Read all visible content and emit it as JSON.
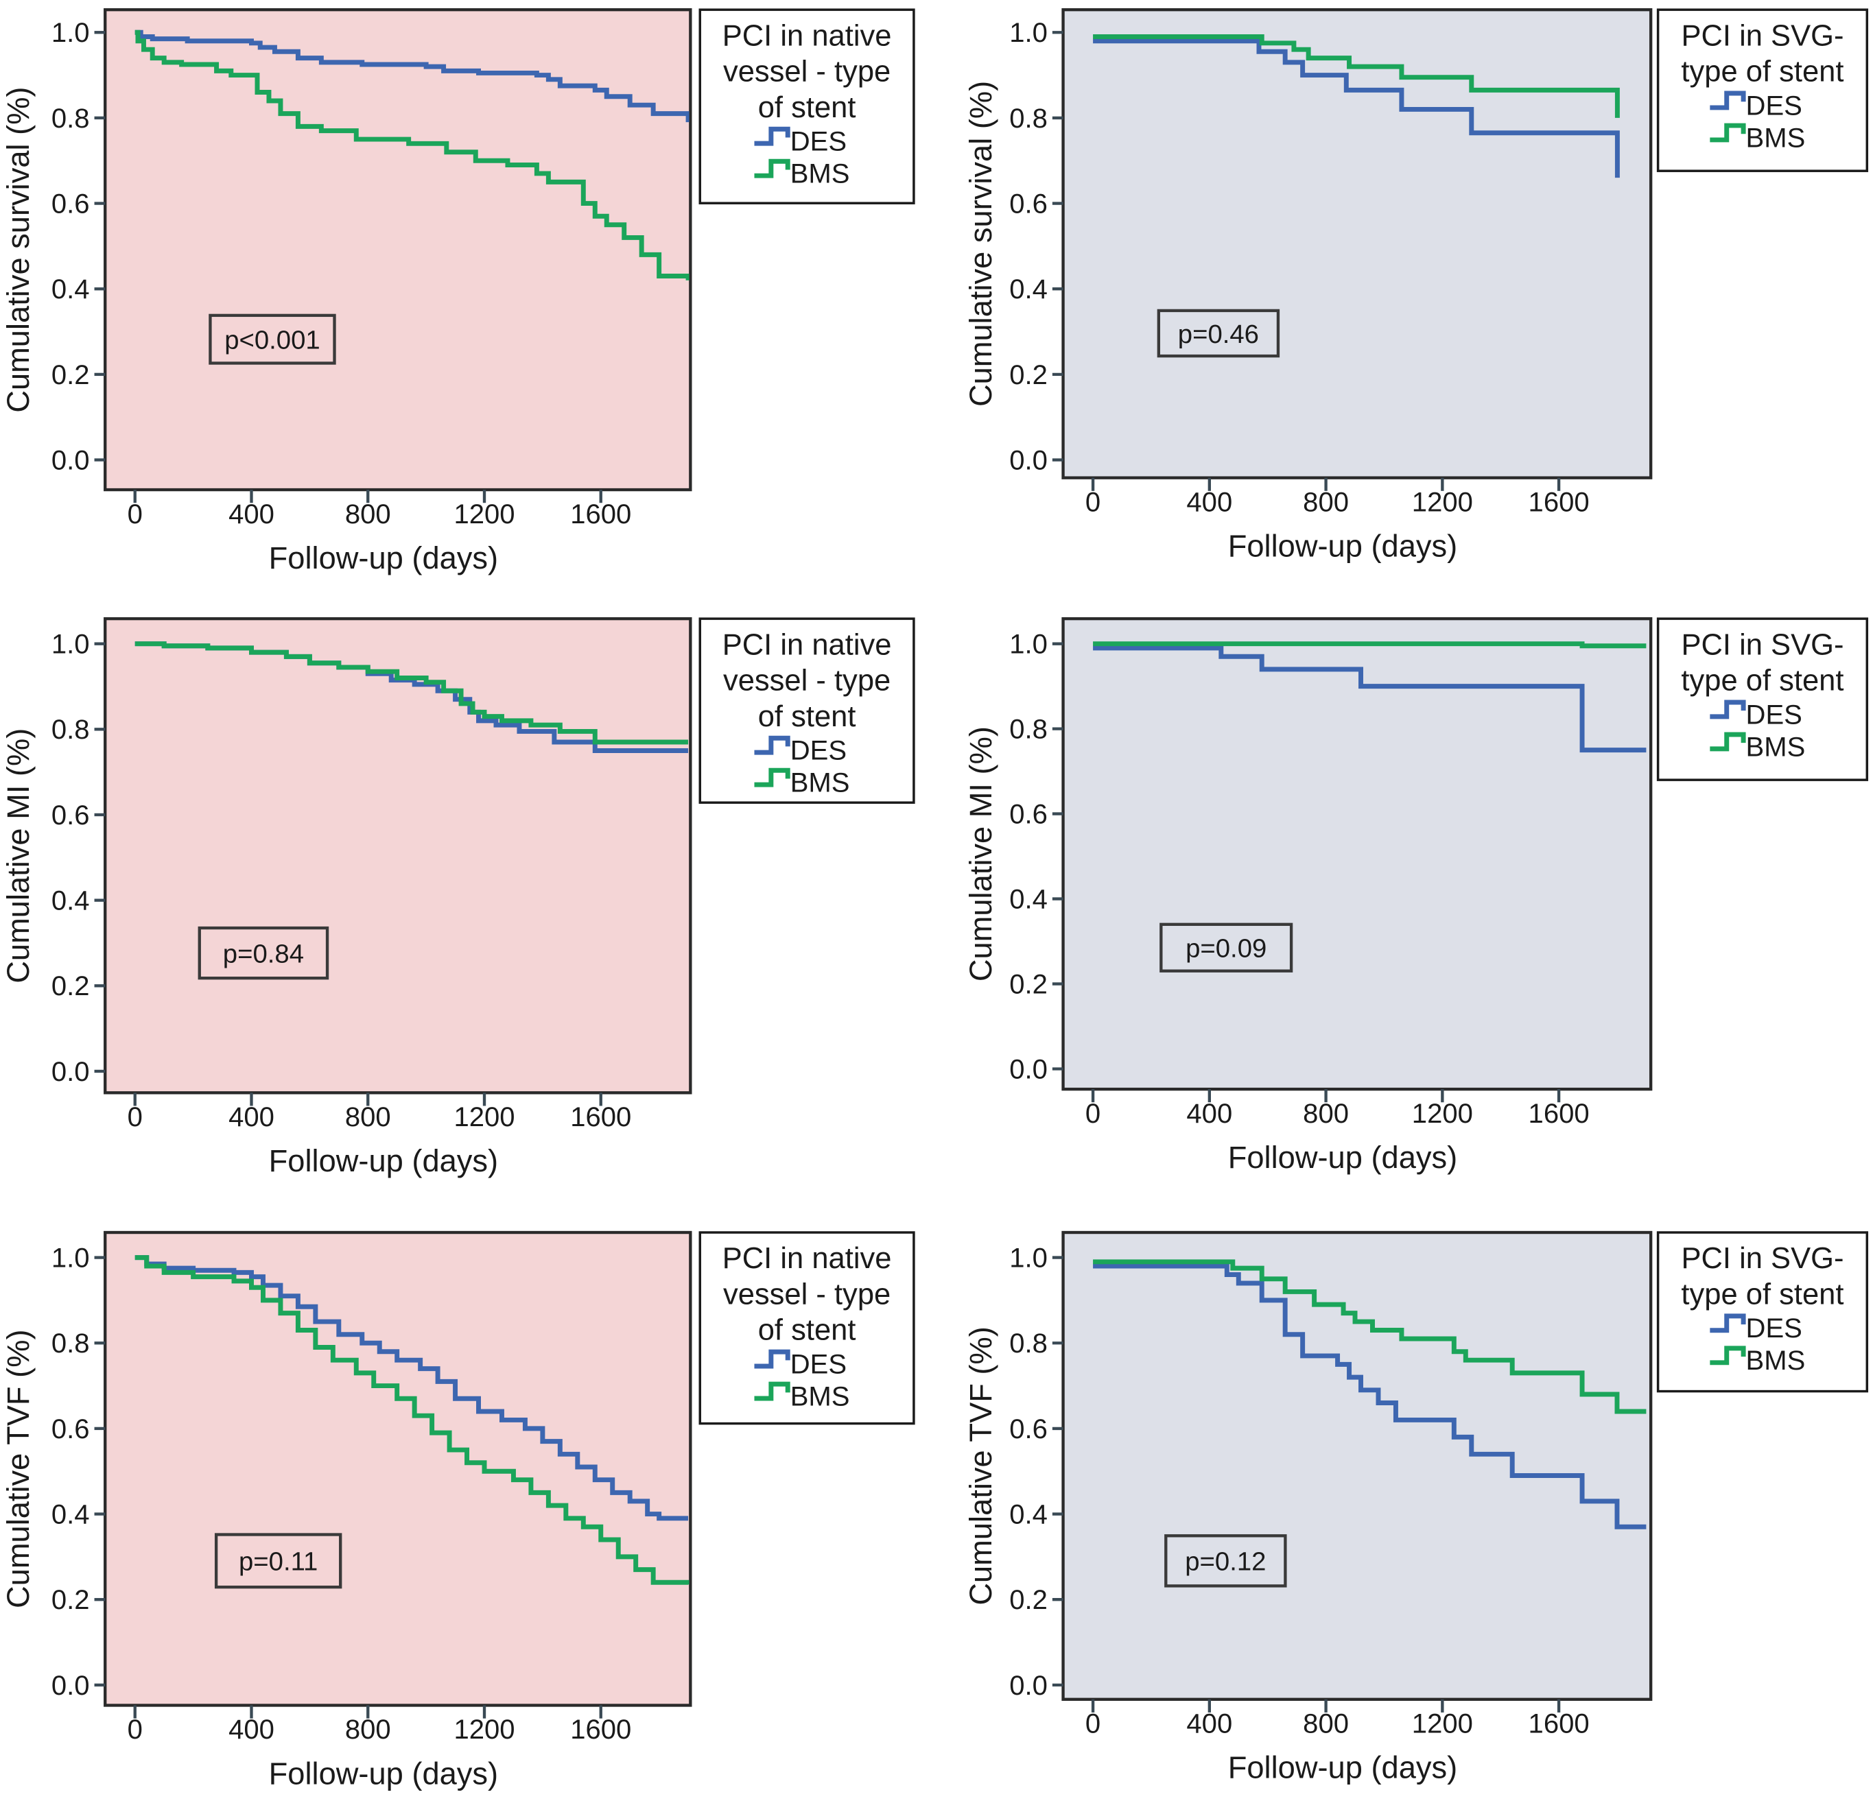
{
  "chart_data": [
    {
      "type": "line",
      "id": "native-survival",
      "title": "",
      "xlabel": "Follow-up (days)",
      "ylabel": "Cumulative survival (%)",
      "xlim": [
        -60,
        1900
      ],
      "ylim": [
        -0.05,
        1.05
      ],
      "xticks": [
        "0",
        "400",
        "800",
        "1200",
        "1600"
      ],
      "xtick_values": [
        0,
        400,
        800,
        1200,
        1600
      ],
      "yticks": [
        "0.0",
        "0.2",
        "0.4",
        "0.6",
        "0.8",
        "1.0"
      ],
      "ytick_values": [
        0,
        0.2,
        0.4,
        0.6,
        0.8,
        1.0
      ],
      "background": "#f4d5d6",
      "grid": false,
      "legend": {
        "title": [
          "PCI in native",
          "vessel - type",
          "of stent"
        ],
        "placement": "right-outside-top",
        "entries": [
          "DES",
          "BMS"
        ]
      },
      "annotation": "p<0.001",
      "series": [
        {
          "name": "DES",
          "color": "#3d66b0",
          "step": true,
          "x": [
            0,
            20,
            60,
            180,
            400,
            430,
            480,
            560,
            640,
            780,
            1000,
            1060,
            1180,
            1380,
            1420,
            1460,
            1580,
            1620,
            1700,
            1780,
            1900
          ],
          "y": [
            1.0,
            0.99,
            0.985,
            0.98,
            0.975,
            0.965,
            0.955,
            0.94,
            0.93,
            0.925,
            0.92,
            0.91,
            0.905,
            0.9,
            0.89,
            0.875,
            0.865,
            0.85,
            0.83,
            0.81,
            0.79
          ]
        },
        {
          "name": "BMS",
          "color": "#1ba55a",
          "step": true,
          "x": [
            0,
            10,
            30,
            60,
            100,
            160,
            280,
            330,
            420,
            460,
            500,
            560,
            640,
            760,
            940,
            1070,
            1170,
            1280,
            1380,
            1420,
            1540,
            1580,
            1620,
            1680,
            1740,
            1800,
            1900
          ],
          "y": [
            1.0,
            0.98,
            0.96,
            0.94,
            0.93,
            0.925,
            0.91,
            0.9,
            0.86,
            0.84,
            0.81,
            0.78,
            0.77,
            0.75,
            0.74,
            0.72,
            0.7,
            0.69,
            0.67,
            0.65,
            0.6,
            0.57,
            0.55,
            0.52,
            0.48,
            0.43,
            0.42
          ]
        }
      ]
    },
    {
      "type": "line",
      "id": "svg-survival",
      "title": "",
      "xlabel": "Follow-up (days)",
      "ylabel": "Cumulative survival (%)",
      "xlim": [
        -60,
        1900
      ],
      "ylim": [
        -0.05,
        1.05
      ],
      "xticks": [
        "0",
        "400",
        "800",
        "1200",
        "1600"
      ],
      "xtick_values": [
        0,
        400,
        800,
        1200,
        1600
      ],
      "yticks": [
        "0.0",
        "0.2",
        "0.4",
        "0.6",
        "0.8",
        "1.0"
      ],
      "ytick_values": [
        0,
        0.2,
        0.4,
        0.6,
        0.8,
        1.0
      ],
      "background": "#dde0e8",
      "grid": false,
      "legend": {
        "title": [
          "PCI in SVG-",
          "type of stent"
        ],
        "placement": "right-outside-top",
        "entries": [
          "DES",
          "BMS"
        ]
      },
      "annotation": "p=0.46",
      "series": [
        {
          "name": "DES",
          "color": "#3d66b0",
          "step": true,
          "x": [
            0,
            570,
            660,
            720,
            870,
            1060,
            1300,
            1800,
            1801
          ],
          "y": [
            0.98,
            0.955,
            0.93,
            0.9,
            0.865,
            0.82,
            0.765,
            0.765,
            0.66
          ]
        },
        {
          "name": "BMS",
          "color": "#1ba55a",
          "step": true,
          "x": [
            0,
            580,
            690,
            740,
            880,
            1060,
            1300,
            1800,
            1801
          ],
          "y": [
            0.99,
            0.975,
            0.96,
            0.94,
            0.92,
            0.895,
            0.865,
            0.865,
            0.8
          ]
        }
      ]
    },
    {
      "type": "line",
      "id": "native-mi",
      "title": "",
      "xlabel": "Follow-up (days)",
      "ylabel": "Cumulative MI (%)",
      "xlim": [
        -60,
        1900
      ],
      "ylim": [
        -0.05,
        1.05
      ],
      "xticks": [
        "0",
        "400",
        "800",
        "1200",
        "1600"
      ],
      "xtick_values": [
        0,
        400,
        800,
        1200,
        1600
      ],
      "yticks": [
        "0.0",
        "0.2",
        "0.4",
        "0.6",
        "0.8",
        "1.0"
      ],
      "ytick_values": [
        0,
        0.2,
        0.4,
        0.6,
        0.8,
        1.0
      ],
      "background": "#f4d5d6",
      "grid": false,
      "legend": {
        "title": [
          "PCI in native",
          "vessel - type",
          "of stent"
        ],
        "placement": "right-outside-top",
        "entries": [
          "DES",
          "BMS"
        ]
      },
      "annotation": "p=0.84",
      "series": [
        {
          "name": "DES",
          "color": "#3d66b0",
          "step": true,
          "x": [
            0,
            100,
            250,
            400,
            520,
            600,
            700,
            800,
            880,
            960,
            1040,
            1100,
            1150,
            1180,
            1240,
            1320,
            1440,
            1580,
            1900
          ],
          "y": [
            1.0,
            0.995,
            0.99,
            0.98,
            0.97,
            0.955,
            0.945,
            0.93,
            0.915,
            0.905,
            0.89,
            0.87,
            0.84,
            0.82,
            0.81,
            0.795,
            0.77,
            0.75,
            0.75
          ]
        },
        {
          "name": "BMS",
          "color": "#1ba55a",
          "step": true,
          "x": [
            0,
            100,
            250,
            400,
            520,
            600,
            700,
            800,
            900,
            1000,
            1060,
            1120,
            1160,
            1200,
            1260,
            1360,
            1460,
            1580,
            1900
          ],
          "y": [
            1.0,
            0.995,
            0.99,
            0.98,
            0.97,
            0.955,
            0.945,
            0.935,
            0.92,
            0.91,
            0.89,
            0.86,
            0.84,
            0.83,
            0.82,
            0.81,
            0.795,
            0.77,
            0.77
          ]
        }
      ]
    },
    {
      "type": "line",
      "id": "svg-mi",
      "title": "",
      "xlabel": "Follow-up (days)",
      "ylabel": "Cumulative MI (%)",
      "xlim": [
        -60,
        1900
      ],
      "ylim": [
        -0.05,
        1.05
      ],
      "xticks": [
        "0",
        "400",
        "800",
        "1200",
        "1600"
      ],
      "xtick_values": [
        0,
        400,
        800,
        1200,
        1600
      ],
      "yticks": [
        "0.0",
        "0.2",
        "0.4",
        "0.6",
        "0.8",
        "1.0"
      ],
      "ytick_values": [
        0,
        0.2,
        0.4,
        0.6,
        0.8,
        1.0
      ],
      "background": "#dde0e8",
      "grid": false,
      "legend": {
        "title": [
          "PCI in SVG-",
          "type of stent"
        ],
        "placement": "right-outside-top",
        "entries": [
          "DES",
          "BMS"
        ]
      },
      "annotation": "p=0.09",
      "series": [
        {
          "name": "DES",
          "color": "#3d66b0",
          "step": true,
          "x": [
            0,
            440,
            580,
            920,
            1680,
            1900
          ],
          "y": [
            0.99,
            0.97,
            0.94,
            0.9,
            0.75,
            0.75
          ]
        },
        {
          "name": "BMS",
          "color": "#1ba55a",
          "step": true,
          "x": [
            0,
            1680,
            1900
          ],
          "y": [
            1.0,
            0.995,
            0.995
          ]
        }
      ]
    },
    {
      "type": "line",
      "id": "native-tvf",
      "title": "",
      "xlabel": "Follow-up (days)",
      "ylabel": "Cumulative TVF (%)",
      "xlim": [
        -60,
        1900
      ],
      "ylim": [
        -0.05,
        1.05
      ],
      "xticks": [
        "0",
        "400",
        "800",
        "1200",
        "1600"
      ],
      "xtick_values": [
        0,
        400,
        800,
        1200,
        1600
      ],
      "yticks": [
        "0.0",
        "0.2",
        "0.4",
        "0.6",
        "0.8",
        "1.0"
      ],
      "ytick_values": [
        0,
        0.2,
        0.4,
        0.6,
        0.8,
        1.0
      ],
      "background": "#f4d5d6",
      "grid": false,
      "legend": {
        "title": [
          "PCI in native",
          "vessel - type",
          "of stent"
        ],
        "placement": "right-outside-top",
        "entries": [
          "DES",
          "BMS"
        ]
      },
      "annotation": "p=0.11",
      "series": [
        {
          "name": "DES",
          "color": "#3d66b0",
          "step": true,
          "x": [
            0,
            40,
            100,
            200,
            340,
            400,
            440,
            500,
            560,
            620,
            700,
            780,
            840,
            900,
            980,
            1040,
            1100,
            1180,
            1260,
            1340,
            1400,
            1460,
            1520,
            1580,
            1640,
            1700,
            1760,
            1800,
            1900
          ],
          "y": [
            1.0,
            0.985,
            0.975,
            0.97,
            0.965,
            0.955,
            0.935,
            0.91,
            0.885,
            0.85,
            0.82,
            0.8,
            0.78,
            0.76,
            0.74,
            0.71,
            0.67,
            0.64,
            0.62,
            0.6,
            0.57,
            0.54,
            0.51,
            0.48,
            0.45,
            0.43,
            0.4,
            0.39,
            0.39
          ]
        },
        {
          "name": "BMS",
          "color": "#1ba55a",
          "step": true,
          "x": [
            0,
            40,
            100,
            200,
            340,
            400,
            440,
            500,
            560,
            620,
            680,
            760,
            820,
            900,
            960,
            1020,
            1080,
            1140,
            1200,
            1300,
            1360,
            1420,
            1480,
            1540,
            1600,
            1660,
            1720,
            1780,
            1900
          ],
          "y": [
            1.0,
            0.98,
            0.965,
            0.955,
            0.945,
            0.93,
            0.9,
            0.87,
            0.83,
            0.79,
            0.76,
            0.73,
            0.7,
            0.67,
            0.63,
            0.59,
            0.55,
            0.52,
            0.5,
            0.48,
            0.45,
            0.42,
            0.39,
            0.37,
            0.34,
            0.3,
            0.27,
            0.24,
            0.235
          ]
        }
      ]
    },
    {
      "type": "line",
      "id": "svg-tvf",
      "title": "",
      "xlabel": "Follow-up (days)",
      "ylabel": "Cumulative TVF (%)",
      "xlim": [
        -60,
        1900
      ],
      "ylim": [
        -0.05,
        1.05
      ],
      "xticks": [
        "0",
        "400",
        "800",
        "1200",
        "1600"
      ],
      "xtick_values": [
        0,
        400,
        800,
        1200,
        1600
      ],
      "yticks": [
        "0.0",
        "0.2",
        "0.4",
        "0.6",
        "0.8",
        "1.0"
      ],
      "ytick_values": [
        0,
        0.2,
        0.4,
        0.6,
        0.8,
        1.0
      ],
      "background": "#dde0e8",
      "grid": false,
      "legend": {
        "title": [
          "PCI in SVG-",
          "type of stent"
        ],
        "placement": "right-outside-top",
        "entries": [
          "DES",
          "BMS"
        ]
      },
      "annotation": "p=0.12",
      "series": [
        {
          "name": "DES",
          "color": "#3d66b0",
          "step": true,
          "x": [
            0,
            460,
            500,
            580,
            660,
            720,
            840,
            880,
            920,
            980,
            1040,
            1240,
            1300,
            1440,
            1680,
            1800,
            1900
          ],
          "y": [
            0.98,
            0.96,
            0.94,
            0.9,
            0.82,
            0.77,
            0.75,
            0.72,
            0.69,
            0.66,
            0.62,
            0.58,
            0.54,
            0.49,
            0.43,
            0.37,
            0.37
          ]
        },
        {
          "name": "BMS",
          "color": "#1ba55a",
          "step": true,
          "x": [
            0,
            480,
            580,
            660,
            760,
            860,
            900,
            960,
            1060,
            1240,
            1280,
            1440,
            1680,
            1800,
            1900
          ],
          "y": [
            0.99,
            0.975,
            0.95,
            0.92,
            0.89,
            0.87,
            0.85,
            0.83,
            0.81,
            0.78,
            0.76,
            0.73,
            0.68,
            0.64,
            0.64
          ]
        }
      ]
    }
  ]
}
